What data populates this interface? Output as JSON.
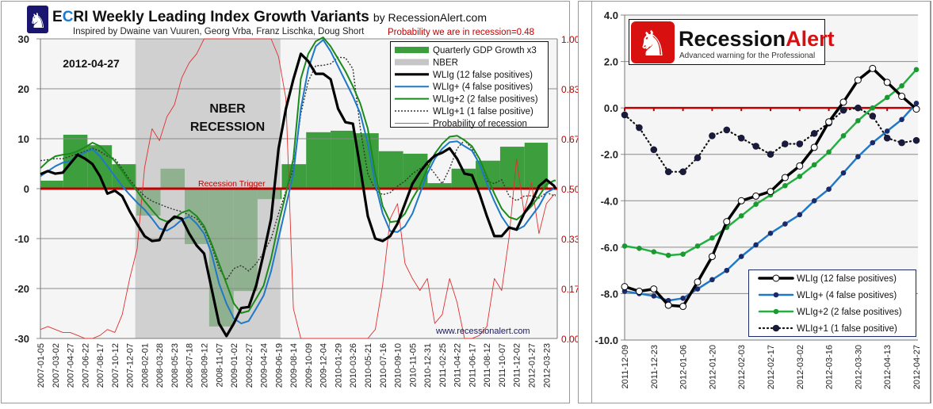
{
  "left_chart": {
    "title_e": "E",
    "title_c": "C",
    "title_rest": "RI Weekly Leading Index Growth Variants",
    "title_by": "by RecessionAlert.com",
    "subtitle": "Inspired by Dwaine van Vuuren,  Georg  Vrba, Franz Lischka, Doug Short",
    "probability_note": "Probability we are in recession=0.48",
    "date_label": "2012-04-27",
    "nber_label_1": "NBER",
    "nber_label_2": "RECESSION",
    "trigger_label": "Recession Trigger",
    "watermark": "www.recessionalert.com",
    "logo_icon": "knight-chess-icon"
  },
  "right_chart": {
    "logo_text_black": "Recession",
    "logo_text_red": "Alert",
    "logo_tagline": "Advanced warning for the Professional",
    "logo_icon": "knight-chess-icon"
  },
  "chart_data": [
    {
      "type": "line",
      "ylim": [
        -30,
        30
      ],
      "y_ticks": [
        "30",
        "20",
        "10",
        "0",
        "-10",
        "-20",
        "-30"
      ],
      "y2lim": [
        0,
        1
      ],
      "y2_ticks": [
        "1.00",
        "0.83",
        "0.67",
        "0.50",
        "0.33",
        "0.17",
        "0.00"
      ],
      "grid": true,
      "legend_position": "top-right",
      "x_ticks": [
        "2007-01-05",
        "2007-03-02",
        "2007-04-27",
        "2007-06-22",
        "2007-08-17",
        "2007-10-12",
        "2007-12-07",
        "2008-02-01",
        "2008-03-28",
        "2008-05-23",
        "2008-07-18",
        "2008-09-12",
        "2008-11-07",
        "2009-01-02",
        "2009-02-27",
        "2009-04-24",
        "2009-06-19",
        "2009-08-14",
        "2009-10-09",
        "2009-12-04",
        "2010-01-29",
        "2010-03-26",
        "2010-05-21",
        "2010-07-16",
        "2010-09-10",
        "2010-11-05",
        "2010-12-31",
        "2011-02-25",
        "2011-04-22",
        "2011-06-17",
        "2011-08-12",
        "2011-10-07",
        "2011-12-02",
        "2012-01-27",
        "2012-03-23"
      ],
      "x_range": [
        "2007-01-05",
        "2012-04-27"
      ],
      "recession_trigger": 0,
      "nber": {
        "name": "NBER",
        "start": "2007-12-28",
        "end": "2009-06-26"
      },
      "gdp": {
        "name": "Quarterly GDP Growth x3",
        "quarter_starts": [
          "2007-01-01",
          "2007-04-01",
          "2007-07-01",
          "2007-10-01",
          "2008-01-01",
          "2008-04-01",
          "2008-07-01",
          "2008-10-01",
          "2009-01-01",
          "2009-04-01",
          "2009-07-01",
          "2009-10-01",
          "2010-01-01",
          "2010-04-01",
          "2010-07-01",
          "2010-10-01",
          "2011-01-01",
          "2011-04-01",
          "2011-07-01",
          "2011-10-01",
          "2012-01-01"
        ],
        "values": [
          1.6,
          10.8,
          8.7,
          4.9,
          -5.4,
          4.0,
          -11.1,
          -27.6,
          -20.5,
          -2.1,
          4.9,
          11.3,
          11.6,
          11.1,
          7.5,
          7.0,
          1.1,
          4.0,
          5.6,
          8.4,
          9.2
        ]
      },
      "x": [
        "2007-01-05",
        "2007-02-02",
        "2007-03-02",
        "2007-03-30",
        "2007-04-27",
        "2007-05-25",
        "2007-06-22",
        "2007-07-20",
        "2007-08-17",
        "2007-09-14",
        "2007-10-12",
        "2007-11-09",
        "2007-12-07",
        "2008-01-04",
        "2008-02-01",
        "2008-02-29",
        "2008-03-28",
        "2008-04-25",
        "2008-05-23",
        "2008-06-20",
        "2008-07-18",
        "2008-08-15",
        "2008-09-12",
        "2008-10-10",
        "2008-11-07",
        "2008-12-05",
        "2009-01-02",
        "2009-01-30",
        "2009-02-27",
        "2009-03-27",
        "2009-04-24",
        "2009-05-22",
        "2009-06-19",
        "2009-07-17",
        "2009-08-14",
        "2009-09-11",
        "2009-10-09",
        "2009-11-06",
        "2009-12-04",
        "2010-01-01",
        "2010-01-29",
        "2010-02-26",
        "2010-03-26",
        "2010-04-23",
        "2010-05-21",
        "2010-06-18",
        "2010-07-16",
        "2010-08-13",
        "2010-09-10",
        "2010-10-08",
        "2010-11-05",
        "2010-12-03",
        "2010-12-31",
        "2011-01-28",
        "2011-02-25",
        "2011-03-25",
        "2011-04-22",
        "2011-05-20",
        "2011-06-17",
        "2011-07-15",
        "2011-08-12",
        "2011-09-09",
        "2011-10-07",
        "2011-11-04",
        "2011-12-02",
        "2011-12-30",
        "2012-01-27",
        "2012-02-24",
        "2012-03-23",
        "2012-04-20",
        "2012-04-27"
      ],
      "series": [
        {
          "name": "WLIg (12 false positives)",
          "color": "#000000",
          "style": "solid-thick",
          "values": [
            2.9,
            3.5,
            3.0,
            3.2,
            5,
            6.8,
            6.0,
            4.9,
            2.5,
            -1.0,
            -0.4,
            -1.5,
            -4.5,
            -7.1,
            -9.5,
            -10.5,
            -10.3,
            -7,
            -5.6,
            -6.0,
            -9,
            -11.4,
            -13,
            -20,
            -27,
            -29.5,
            -27,
            -23.9,
            -23.7,
            -19.4,
            -13,
            -6,
            8,
            16,
            21.9,
            27,
            25.5,
            23,
            23,
            21.9,
            16,
            13.3,
            13,
            4,
            -5.5,
            -10,
            -10.5,
            -9.5,
            -7,
            -3,
            1,
            3.3,
            5.2,
            6.6,
            7.2,
            8.1,
            6,
            3,
            2.7,
            -1,
            -5.5,
            -9.5,
            -9.5,
            -7.8,
            -8.2,
            -5,
            -2.8,
            0.5,
            1.8,
            0.6,
            0
          ]
        },
        {
          "name": "WLIg+ (4 false positives)",
          "color": "#1f78c8",
          "style": "solid",
          "values": [
            2.5,
            3.5,
            4.5,
            5.2,
            5.5,
            6.5,
            7.3,
            7.9,
            6.5,
            4.5,
            2.5,
            0.5,
            -1.2,
            -2.8,
            -4.2,
            -6,
            -8,
            -8.4,
            -7.5,
            -6.2,
            -5.6,
            -7,
            -9,
            -13,
            -19,
            -23,
            -26,
            -27,
            -26.5,
            -24,
            -21.4,
            -16.5,
            -10,
            -3.5,
            3,
            16,
            24,
            28.5,
            29.8,
            27.5,
            24.5,
            21.5,
            18.5,
            15,
            9,
            1,
            -5,
            -8.5,
            -8.7,
            -7.5,
            -5,
            -1,
            3,
            6,
            8,
            9.3,
            9.5,
            8.5,
            7.6,
            5,
            1,
            -2.5,
            -5.6,
            -7.8,
            -8.3,
            -7.5,
            -5.5,
            -3.5,
            -0.8,
            0,
            0.2
          ]
        },
        {
          "name": "WLIg+2 (2 false positives)",
          "color": "#1a8a1a",
          "style": "solid",
          "values": [
            4.1,
            5.5,
            6.5,
            6.8,
            7,
            7.5,
            8.3,
            9.2,
            8.5,
            7,
            5.5,
            3.5,
            1.3,
            -0.5,
            -2.5,
            -4.3,
            -6,
            -6.6,
            -6,
            -4.8,
            -4.3,
            -5.5,
            -7.5,
            -11,
            -15,
            -19,
            -23,
            -24.9,
            -24.5,
            -22,
            -19.4,
            -14,
            -7,
            -1,
            6,
            22,
            27,
            29.5,
            30.3,
            28.5,
            26,
            23.5,
            20.5,
            17,
            12,
            3,
            -3.5,
            -6.7,
            -6.5,
            -5,
            -2,
            0.5,
            4,
            7,
            9,
            10.4,
            10.6,
            9.7,
            8.5,
            6,
            2.5,
            -1,
            -4,
            -5.7,
            -6.2,
            -5,
            -3.5,
            -1.5,
            0.8,
            1.6,
            1.65
          ]
        },
        {
          "name": "WLIg+1 (1 false positive)",
          "color": "#333333",
          "style": "dotted",
          "values": [
            5.6,
            5.8,
            6,
            6,
            6.5,
            7,
            7.5,
            8.1,
            7.5,
            6.5,
            6,
            4,
            1.8,
            0,
            -1.5,
            -2.5,
            -3.1,
            -3.7,
            -4.2,
            -4.6,
            -5.3,
            -6,
            -8,
            -11.5,
            -16,
            -18.3,
            -16,
            -15.4,
            -16.5,
            -15,
            -12.8,
            -10,
            -5,
            -0.5,
            4,
            15,
            21.5,
            24.6,
            24.7,
            25,
            26.3,
            26.2,
            24,
            12,
            3,
            -0.2,
            -1.2,
            -0.8,
            0.5,
            1.5,
            3,
            4,
            4.9,
            3,
            1,
            4,
            8,
            9.7,
            8,
            5,
            1.5,
            1,
            1.8,
            -1.5,
            -2.4,
            -1.5,
            -1.4,
            -1.9,
            -0.8,
            -1.4,
            -1.4
          ]
        },
        {
          "name": "Probability of recession",
          "color": "#e03030",
          "style": "thin",
          "axis": "right",
          "values": [
            0.03,
            0.04,
            0.03,
            0.02,
            0.02,
            0.01,
            0.0,
            0.0,
            0.01,
            0.03,
            0.02,
            0.08,
            0.2,
            0.3,
            0.57,
            0.7,
            0.66,
            0.74,
            0.78,
            0.87,
            0.92,
            0.95,
            1,
            1,
            1,
            1,
            1,
            1,
            1,
            1,
            1,
            1,
            0.94,
            0.8,
            0.1,
            0,
            0,
            0,
            0,
            0,
            0,
            0,
            0,
            0,
            0,
            0.03,
            0.18,
            0.4,
            0.45,
            0.25,
            0.2,
            0.16,
            0.2,
            0.05,
            0.08,
            0.2,
            0.12,
            0.0,
            0.0,
            0.01,
            0.04,
            0.2,
            0.16,
            0.34,
            0.6,
            0.42,
            0.52,
            0.35,
            0.45,
            0.48,
            0.48
          ]
        }
      ]
    },
    {
      "type": "line",
      "ylim": [
        -10,
        4
      ],
      "y_ticks": [
        "4.0",
        "2.0",
        "0.0",
        "-2.0",
        "-4.0",
        "-6.0",
        "-8.0",
        "-10.0"
      ],
      "grid": true,
      "legend_position": "bottom-right",
      "x": [
        "2011-12-09",
        "2011-12-16",
        "2011-12-23",
        "2011-12-30",
        "2012-01-06",
        "2012-01-13",
        "2012-01-20",
        "2012-01-27",
        "2012-02-03",
        "2012-02-10",
        "2012-02-17",
        "2012-02-24",
        "2012-03-02",
        "2012-03-09",
        "2012-03-16",
        "2012-03-23",
        "2012-03-30",
        "2012-04-06",
        "2012-04-13",
        "2012-04-20",
        "2012-04-27"
      ],
      "x_ticks": [
        "2011-12-09",
        "2011-12-23",
        "2012-01-06",
        "2012-01-20",
        "2012-02-03",
        "2012-02-17",
        "2012-03-02",
        "2012-03-16",
        "2012-03-30",
        "2012-04-13",
        "2012-04-27"
      ],
      "series": [
        {
          "name": "WLIg (12 false positives)",
          "color": "#000000",
          "style": "thick-open-marker",
          "values": [
            -7.7,
            -7.9,
            -7.8,
            -8.5,
            -8.55,
            -7.5,
            -6.4,
            -4.9,
            -4.0,
            -3.8,
            -3.6,
            -3.0,
            -2.5,
            -1.7,
            -0.6,
            0.25,
            1.2,
            1.7,
            1.1,
            0.5,
            -0.05
          ]
        },
        {
          "name": "WLIg+ (4 false positives)",
          "color": "#1f78c8",
          "marker_color": "#1a2a6a",
          "style": "solid-marker",
          "values": [
            -7.9,
            -8.0,
            -8.1,
            -8.3,
            -8.2,
            -7.8,
            -7.4,
            -7.0,
            -6.4,
            -5.9,
            -5.4,
            -5.0,
            -4.6,
            -4.0,
            -3.5,
            -2.8,
            -2.1,
            -1.5,
            -1.0,
            -0.5,
            0.2
          ]
        },
        {
          "name": "WLIg+2 (2 false positives)",
          "color": "#22b040",
          "marker_color": "#1a9a30",
          "style": "solid-marker",
          "values": [
            -5.95,
            -6.05,
            -6.2,
            -6.35,
            -6.3,
            -5.95,
            -5.6,
            -5.15,
            -4.65,
            -4.15,
            -3.75,
            -3.35,
            -2.95,
            -2.45,
            -1.9,
            -1.2,
            -0.55,
            0.0,
            0.45,
            0.95,
            1.65
          ]
        },
        {
          "name": "WLIg+1 (1 false positive)",
          "color": "#111111",
          "marker_color": "#1a1a3a",
          "style": "dotted-marker",
          "values": [
            -0.3,
            -0.85,
            -1.8,
            -2.75,
            -2.75,
            -2.15,
            -1.2,
            -0.95,
            -1.3,
            -1.65,
            -2.0,
            -1.55,
            -1.55,
            -1.1,
            -0.65,
            -0.1,
            0.0,
            -0.35,
            -1.3,
            -1.5,
            -1.4
          ]
        }
      ]
    }
  ]
}
